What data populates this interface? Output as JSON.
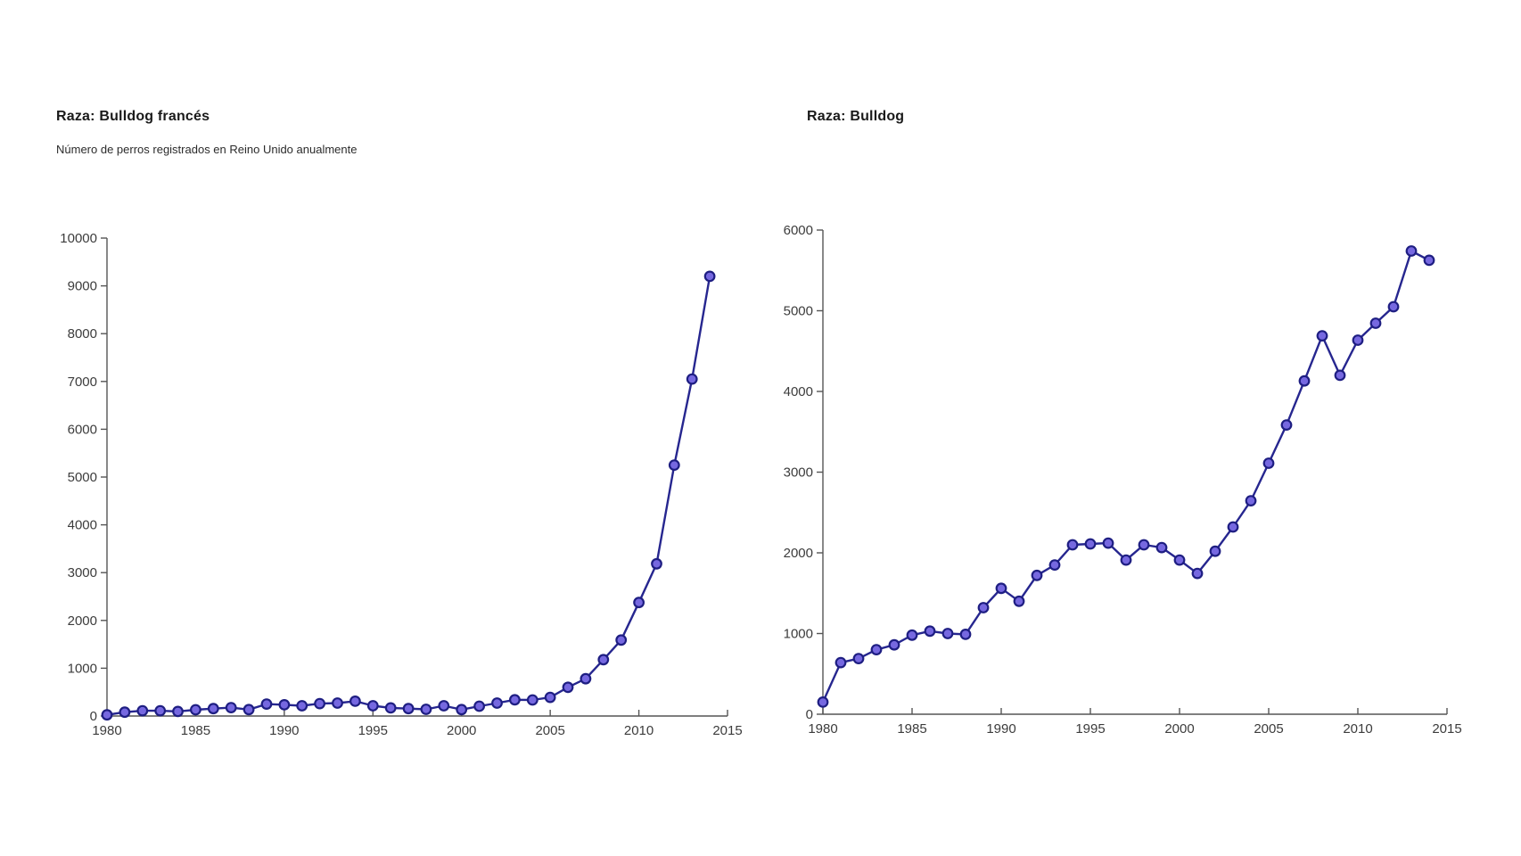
{
  "page": {
    "background_color": "#ffffff",
    "accent_line_color": "#26268f",
    "marker_fill_color": "#7668e0",
    "marker_edge_color": "#1e1e82",
    "axis_color": "#555555",
    "tick_label_color": "#3c3c3c"
  },
  "chart_data": [
    {
      "type": "line",
      "title": "Raza: Bulldog francés",
      "subtitle": "Número de perros registrados en Reino Unido anualmente",
      "xlabel": "",
      "ylabel": "",
      "x": [
        1980,
        1981,
        1982,
        1983,
        1984,
        1985,
        1986,
        1987,
        1988,
        1989,
        1990,
        1991,
        1992,
        1993,
        1994,
        1995,
        1996,
        1997,
        1998,
        1999,
        2000,
        2001,
        2002,
        2003,
        2004,
        2005,
        2006,
        2007,
        2008,
        2009,
        2010,
        2011,
        2012,
        2013,
        2014
      ],
      "y": [
        25,
        80,
        110,
        110,
        95,
        130,
        155,
        175,
        135,
        250,
        235,
        215,
        260,
        270,
        310,
        215,
        170,
        155,
        140,
        215,
        135,
        205,
        270,
        340,
        335,
        390,
        600,
        780,
        1180,
        1590,
        2375,
        3185,
        5250,
        7050,
        9200
      ],
      "xlim": [
        1980,
        2015
      ],
      "ylim": [
        0,
        10000
      ],
      "xticks": [
        1980,
        1985,
        1990,
        1995,
        2000,
        2005,
        2010,
        2015
      ],
      "yticks": [
        0,
        1000,
        2000,
        3000,
        4000,
        5000,
        6000,
        7000,
        8000,
        9000,
        10000
      ],
      "grid": false,
      "legend": "none",
      "line_color": "#26268f",
      "marker": "circle"
    },
    {
      "type": "line",
      "title": "Raza: Bulldog",
      "subtitle": "",
      "xlabel": "",
      "ylabel": "",
      "x": [
        1980,
        1981,
        1982,
        1983,
        1984,
        1985,
        1986,
        1987,
        1988,
        1989,
        1990,
        1991,
        1992,
        1993,
        1994,
        1995,
        1996,
        1997,
        1998,
        1999,
        2000,
        2001,
        2002,
        2003,
        2004,
        2005,
        2006,
        2007,
        2008,
        2009,
        2010,
        2011,
        2012,
        2013,
        2014
      ],
      "y": [
        150,
        640,
        690,
        800,
        860,
        980,
        1030,
        1000,
        990,
        1320,
        1560,
        1400,
        1720,
        1850,
        2100,
        2110,
        2120,
        1910,
        2100,
        2065,
        1910,
        1745,
        2020,
        2320,
        2645,
        3110,
        3585,
        4130,
        4690,
        4200,
        4635,
        4845,
        5050,
        5740,
        5625
      ],
      "xlim": [
        1980,
        2015
      ],
      "ylim": [
        0,
        6000
      ],
      "xticks": [
        1980,
        1985,
        1990,
        1995,
        2000,
        2005,
        2010,
        2015
      ],
      "yticks": [
        0,
        1000,
        2000,
        3000,
        4000,
        5000,
        6000
      ],
      "grid": false,
      "legend": "none",
      "line_color": "#26268f",
      "marker": "circle"
    }
  ]
}
